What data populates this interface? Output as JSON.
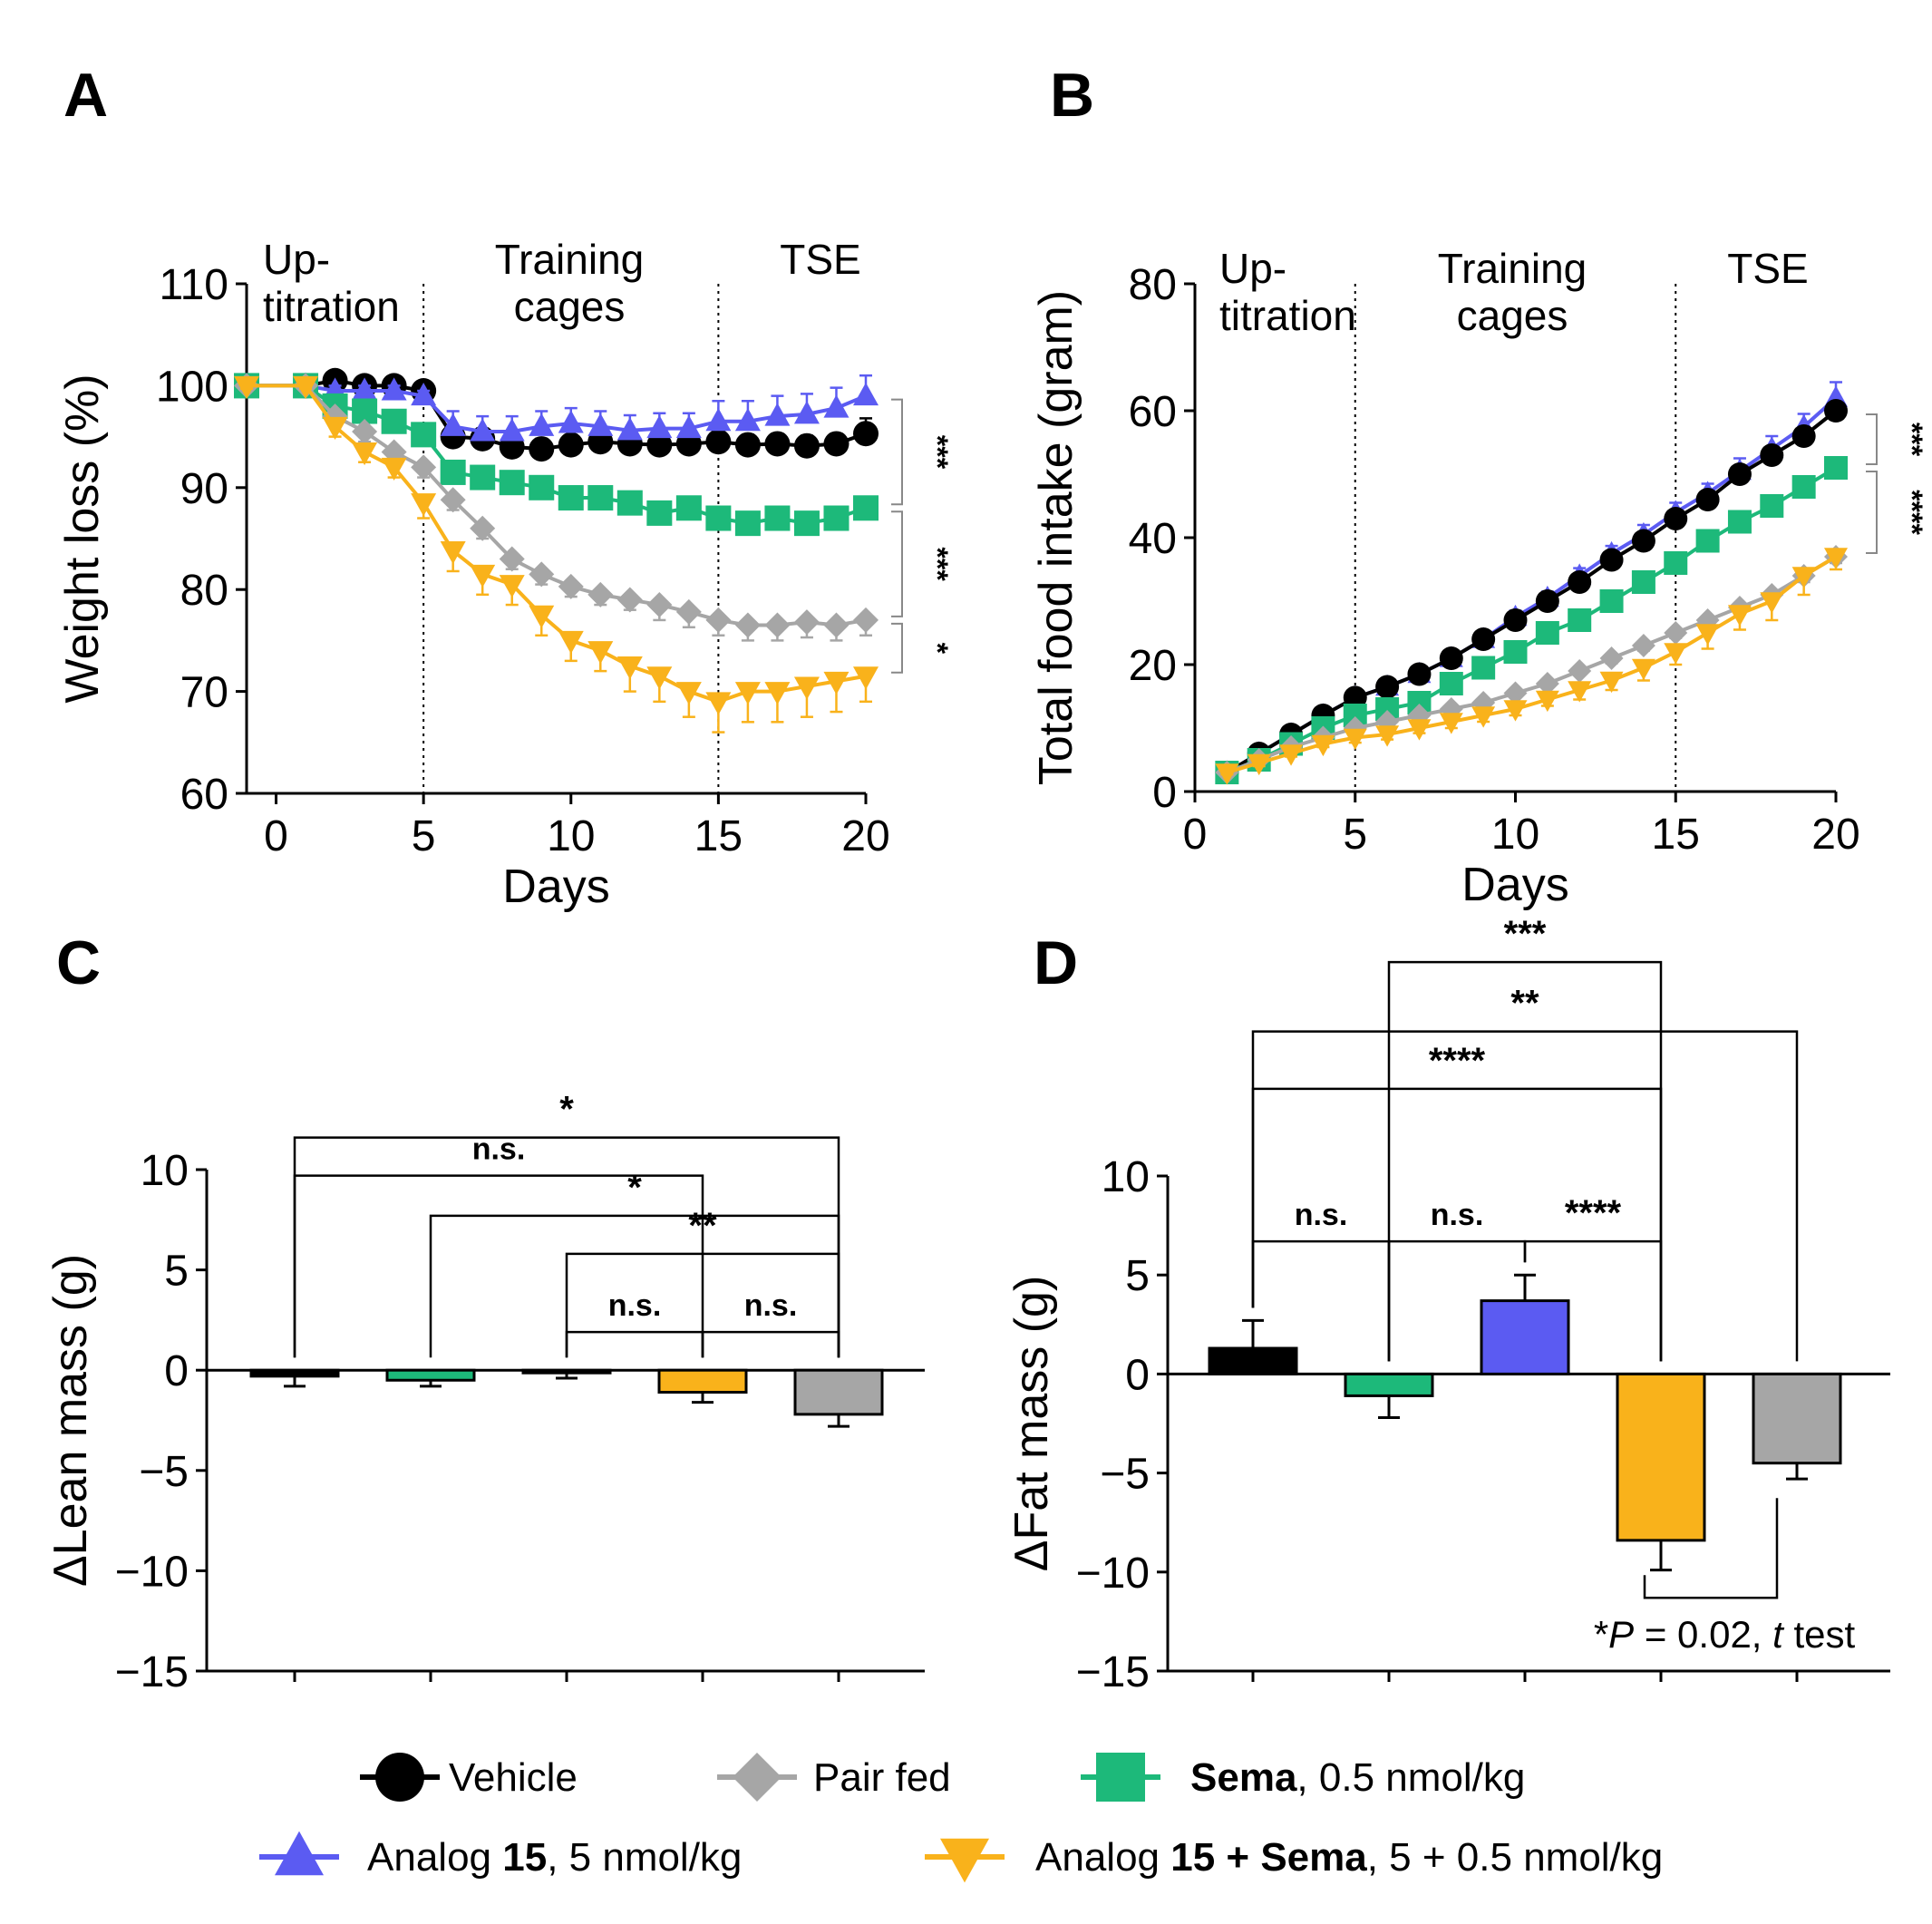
{
  "colors": {
    "vehicle": "#000000",
    "pair_fed": "#a6a6a6",
    "sema": "#1db97a",
    "analog15": "#5b5bf2",
    "combo": "#f9b21b"
  },
  "legend": [
    {
      "key": "vehicle",
      "label_plain": "Vehicle",
      "bold": "",
      "suffix": "",
      "marker": "circle"
    },
    {
      "key": "pair_fed",
      "label_plain": "Pair fed",
      "bold": "",
      "suffix": "",
      "marker": "diamond"
    },
    {
      "key": "sema",
      "label_plain": "",
      "bold": "Sema",
      "suffix": ", 0.5 nmol/kg",
      "marker": "square"
    },
    {
      "key": "analog15",
      "label_plain": "Analog ",
      "bold": "15",
      "suffix": ", 5 nmol/kg",
      "marker": "triangle-up"
    },
    {
      "key": "combo",
      "label_plain": "Analog ",
      "bold": "15 + Sema",
      "suffix": ", 5 + 0.5 nmol/kg",
      "marker": "triangle-down"
    }
  ],
  "chart_data": [
    {
      "panel": "A",
      "type": "line",
      "xlabel": "Days",
      "ylabel": "Weight loss (%)",
      "xlim": [
        -1,
        20
      ],
      "ylim": [
        60,
        110
      ],
      "xticks": [
        0,
        5,
        10,
        15,
        20
      ],
      "yticks": [
        60,
        70,
        80,
        90,
        100,
        110
      ],
      "phase_lines": [
        5,
        15
      ],
      "phases": [
        {
          "lines": [
            "Up-",
            "titration"
          ]
        },
        {
          "lines": [
            "Training",
            "cages"
          ]
        },
        {
          "lines": [
            "TSE"
          ]
        }
      ],
      "series": [
        {
          "key": "vehicle",
          "name": "Vehicle",
          "x": [
            -1,
            1,
            2,
            3,
            4,
            5,
            6,
            7,
            8,
            9,
            10,
            11,
            12,
            13,
            14,
            15,
            16,
            17,
            18,
            19,
            20
          ],
          "y": [
            100,
            100,
            100.5,
            100,
            100,
            99.5,
            95,
            94.8,
            94,
            93.8,
            94.2,
            94.5,
            94.3,
            94.2,
            94.3,
            94.5,
            94.2,
            94.3,
            94.1,
            94.3,
            95.3
          ],
          "err": [
            0.5,
            0.5,
            0.5,
            0.5,
            0.5,
            0.5,
            1,
            1,
            1,
            1,
            1,
            1,
            1,
            1,
            1,
            1,
            1,
            1,
            1,
            1,
            1.5
          ]
        },
        {
          "key": "analog15",
          "name": "Analog 15, 5 nmol/kg",
          "x": [
            -1,
            1,
            2,
            3,
            4,
            5,
            6,
            7,
            8,
            9,
            10,
            11,
            12,
            13,
            14,
            15,
            16,
            17,
            18,
            19,
            20
          ],
          "y": [
            100,
            100,
            99.5,
            99.5,
            99.5,
            99,
            96,
            95.5,
            95.5,
            96,
            96.3,
            96,
            95.6,
            95.8,
            95.8,
            96.5,
            96.5,
            97,
            97.2,
            97.8,
            99
          ],
          "err": [
            0.3,
            0.3,
            0.5,
            0.5,
            0.5,
            0.5,
            1.5,
            1.5,
            1.5,
            1.5,
            1.5,
            1.5,
            1.5,
            1.5,
            1.5,
            2,
            2,
            2,
            2,
            2,
            2
          ]
        },
        {
          "key": "sema",
          "name": "Sema, 0.5 nmol/kg",
          "x": [
            -1,
            1,
            2,
            3,
            4,
            5,
            6,
            7,
            8,
            9,
            10,
            11,
            12,
            13,
            14,
            15,
            16,
            17,
            18,
            19,
            20
          ],
          "y": [
            100,
            100,
            98,
            97.5,
            96.5,
            95.2,
            91.5,
            91,
            90.5,
            90,
            89,
            89,
            88.5,
            87.5,
            88,
            87,
            86.5,
            87,
            86.5,
            87,
            88
          ],
          "err": [
            0.3,
            0.3,
            0.8,
            0.8,
            0.8,
            1,
            1,
            1,
            1,
            1,
            1,
            1,
            1,
            1,
            1,
            1,
            1,
            1,
            1,
            1,
            1
          ]
        },
        {
          "key": "pair_fed",
          "name": "Pair fed",
          "x": [
            -1,
            1,
            2,
            3,
            4,
            5,
            6,
            7,
            8,
            9,
            10,
            11,
            12,
            13,
            14,
            15,
            16,
            17,
            18,
            19,
            20
          ],
          "y": [
            100,
            100,
            97,
            95.5,
            93.5,
            92,
            88.8,
            86,
            83,
            81.5,
            80.3,
            79.5,
            79,
            78.5,
            77.8,
            77,
            76.5,
            76.5,
            76.8,
            76.5,
            77
          ],
          "err": [
            0.3,
            0.3,
            1,
            1,
            1,
            1,
            1,
            1,
            1,
            1,
            1,
            1,
            1,
            1.5,
            1.5,
            1.5,
            1.5,
            1.5,
            1.5,
            1.5,
            1.5
          ]
        },
        {
          "key": "combo",
          "name": "Analog 15 + Sema, 5 + 0.5 nmol/kg",
          "x": [
            -1,
            1,
            2,
            3,
            4,
            5,
            6,
            7,
            8,
            9,
            10,
            11,
            12,
            13,
            14,
            15,
            16,
            17,
            18,
            19,
            20
          ],
          "y": [
            100,
            100,
            96,
            93.5,
            92,
            88.5,
            83.8,
            81.5,
            80.5,
            77.5,
            75,
            74,
            72.5,
            71.5,
            70,
            69,
            70,
            70,
            70.5,
            71,
            71.5
          ],
          "err": [
            0.3,
            0.3,
            1,
            1,
            1,
            1.5,
            2,
            2,
            2,
            2,
            2,
            2,
            2.5,
            2.5,
            2.5,
            3,
            3,
            3,
            3,
            3,
            2.5
          ]
        }
      ],
      "significance": [
        {
          "from_key": "analog15",
          "to_key": "sema",
          "label": "***"
        },
        {
          "from_key": "sema",
          "to_key": "pair_fed",
          "label": "***"
        },
        {
          "from_key": "pair_fed",
          "to_key": "combo",
          "label": "*"
        }
      ]
    },
    {
      "panel": "B",
      "type": "line",
      "xlabel": "Days",
      "ylabel": "Total food intake (gram)",
      "xlim": [
        0,
        20
      ],
      "ylim": [
        0,
        80
      ],
      "xticks": [
        0,
        5,
        10,
        15,
        20
      ],
      "yticks": [
        0,
        20,
        40,
        60,
        80
      ],
      "phase_lines": [
        5,
        15
      ],
      "phases": [
        {
          "lines": [
            "Up-",
            "titration"
          ]
        },
        {
          "lines": [
            "Training",
            "cages"
          ]
        },
        {
          "lines": [
            "TSE"
          ]
        }
      ],
      "series": [
        {
          "key": "analog15",
          "name": "Analog 15, 5 nmol/kg",
          "x": [
            1,
            2,
            3,
            4,
            5,
            6,
            7,
            8,
            9,
            10,
            11,
            12,
            13,
            14,
            15,
            16,
            17,
            18,
            19,
            20
          ],
          "y": [
            3,
            6,
            9,
            12,
            14.8,
            16.5,
            18.5,
            21,
            24,
            27.5,
            30.5,
            34,
            37.5,
            40.5,
            44,
            47,
            50.5,
            54,
            57.5,
            62
          ],
          "err": [
            0.3,
            0.5,
            0.5,
            0.5,
            0.8,
            0.8,
            1,
            1,
            1,
            1,
            1,
            1.2,
            1.2,
            1.5,
            1.5,
            1.5,
            2,
            2,
            2,
            2.5
          ]
        },
        {
          "key": "vehicle",
          "name": "Vehicle",
          "x": [
            1,
            2,
            3,
            4,
            5,
            6,
            7,
            8,
            9,
            10,
            11,
            12,
            13,
            14,
            15,
            16,
            17,
            18,
            19,
            20
          ],
          "y": [
            3,
            6,
            9,
            12,
            14.8,
            16.5,
            18.5,
            21,
            24,
            27,
            30,
            33,
            36.5,
            39.5,
            43,
            46,
            50,
            53,
            56,
            60
          ],
          "err": [
            0.3,
            0.5,
            0.5,
            0.5,
            0.8,
            0.8,
            1,
            1,
            1,
            1,
            1,
            1,
            1,
            1,
            1,
            1,
            1,
            1,
            1,
            1
          ]
        },
        {
          "key": "sema",
          "name": "Sema, 0.5 nmol/kg",
          "x": [
            1,
            2,
            3,
            4,
            5,
            6,
            7,
            8,
            9,
            10,
            11,
            12,
            13,
            14,
            15,
            16,
            17,
            18,
            19,
            20
          ],
          "y": [
            3,
            5,
            7.5,
            10,
            12,
            13,
            14,
            17,
            19.5,
            22,
            25,
            27,
            30,
            33,
            36,
            39.5,
            42.5,
            45,
            48,
            51
          ],
          "err": [
            0.3,
            0.5,
            0.5,
            0.5,
            0.8,
            0.8,
            0.8,
            1,
            1,
            1,
            1,
            1,
            1,
            1,
            1,
            1,
            1,
            1,
            1,
            1
          ]
        },
        {
          "key": "pair_fed",
          "name": "Pair fed",
          "x": [
            1,
            2,
            3,
            4,
            5,
            6,
            7,
            8,
            9,
            10,
            11,
            12,
            13,
            14,
            15,
            16,
            17,
            18,
            19,
            20
          ],
          "y": [
            3,
            5,
            7,
            8.5,
            10,
            11,
            12,
            13,
            14,
            15.5,
            17,
            19,
            21,
            23,
            25,
            27,
            29,
            31,
            34,
            37
          ],
          "err": [
            0.3,
            0.5,
            0.5,
            0.5,
            0.5,
            0.5,
            0.5,
            0.5,
            0.5,
            0.5,
            0.5,
            0.5,
            0.8,
            0.8,
            0.8,
            1,
            1,
            1,
            1,
            1
          ]
        },
        {
          "key": "combo",
          "name": "Analog 15 + Sema, 5 + 0.5 nmol/kg",
          "x": [
            1,
            2,
            3,
            4,
            5,
            6,
            7,
            8,
            9,
            10,
            11,
            12,
            13,
            14,
            15,
            16,
            17,
            18,
            19,
            20
          ],
          "y": [
            3,
            4.5,
            6,
            7.5,
            8.5,
            9,
            10,
            11,
            12,
            13,
            14.5,
            16,
            17.5,
            19.5,
            22,
            25,
            28,
            30,
            34,
            37
          ],
          "err": [
            0.3,
            0.5,
            0.5,
            0.5,
            0.8,
            0.8,
            0.8,
            1,
            1,
            1,
            1,
            1.5,
            1.5,
            2,
            2,
            2.5,
            2.5,
            3,
            3,
            2
          ]
        }
      ],
      "significance": [
        {
          "from_key": "vehicle",
          "to_key": "sema",
          "label": "***"
        },
        {
          "from_key": "sema",
          "to_key": "pair_fed",
          "label": "****"
        }
      ]
    },
    {
      "panel": "C",
      "type": "bar",
      "ylabel": "ΔLean mass (g)",
      "ylim": [
        -15,
        10
      ],
      "yticks": [
        -15,
        -10,
        -5,
        0,
        5,
        10
      ],
      "categories": [
        "Vehicle",
        "Sema",
        "Analog 15",
        "Analog 15 + Sema",
        "Pair fed"
      ],
      "bar_keys": [
        "vehicle",
        "sema",
        "analog15",
        "combo",
        "pair_fed"
      ],
      "values": [
        -0.3,
        -0.5,
        -0.1,
        -1.1,
        -2.2
      ],
      "errors": [
        0.5,
        0.3,
        0.3,
        0.5,
        0.6
      ],
      "significance": [
        {
          "a": 0,
          "b": 4,
          "label": "*",
          "top": 11.6,
          "from": "bar",
          "to": "bar",
          "small": false
        },
        {
          "a": 1,
          "b": 4,
          "label": "*",
          "top": 7.7,
          "from": "bar",
          "to": "bar",
          "small": false
        },
        {
          "a": 0,
          "b": 3,
          "label": "n.s.",
          "top": 9.7,
          "from": "bar",
          "to": "bar",
          "small": true
        },
        {
          "a": 2,
          "b": 4,
          "label": "**",
          "top": 5.8,
          "from": "bar",
          "to": "bar",
          "small": false
        },
        {
          "a": 2,
          "b": 3,
          "label": "n.s.",
          "top": 1.9,
          "from": "bar",
          "to": "bar",
          "small": true
        },
        {
          "a": 3,
          "b": 4,
          "label": "n.s.",
          "top": 1.9,
          "from": "bar",
          "to": "bar",
          "small": true
        }
      ]
    },
    {
      "panel": "D",
      "type": "bar",
      "ylabel": "ΔFat mass (g)",
      "ylim": [
        -15,
        10
      ],
      "yticks": [
        -15,
        -10,
        -5,
        0,
        5,
        10
      ],
      "categories": [
        "Vehicle",
        "Sema",
        "Analog 15",
        "Analog 15 + Sema",
        "Pair fed"
      ],
      "bar_keys": [
        "vehicle",
        "sema",
        "analog15",
        "combo",
        "pair_fed"
      ],
      "values": [
        1.3,
        -1.1,
        3.7,
        -8.4,
        -4.5
      ],
      "errors": [
        1.4,
        1.1,
        1.3,
        1.5,
        0.8
      ],
      "significance": [
        {
          "a": 1,
          "b": 3,
          "label": "***",
          "top": 20.8,
          "from": "bar",
          "to": "bar",
          "small": false
        },
        {
          "a": 0,
          "b": 4,
          "label": "**",
          "top": 17.3,
          "from": "bar",
          "to": "bar",
          "small": false
        },
        {
          "a": 0,
          "b": 3,
          "label": "****",
          "top": 14.4,
          "from": "bar",
          "to": "bar",
          "small": false
        },
        {
          "a": 0,
          "b": 1,
          "label": "n.s.",
          "top": 6.7,
          "from": "bar",
          "to": "bar",
          "small": true
        },
        {
          "a": 1,
          "b": 2,
          "label": "n.s.",
          "top": 6.7,
          "from": "bar",
          "to": "bar",
          "small": true
        },
        {
          "a": 2,
          "b": 3,
          "label": "****",
          "top": 6.7,
          "from": "bar",
          "to": "bar",
          "small": false
        }
      ],
      "t_test": {
        "a": 3,
        "b": 4,
        "level": -11.3,
        "text_pre": "*",
        "text_p": "P",
        "text_mid": " = 0.02, ",
        "text_t": "t",
        "text_post": " test"
      }
    }
  ]
}
